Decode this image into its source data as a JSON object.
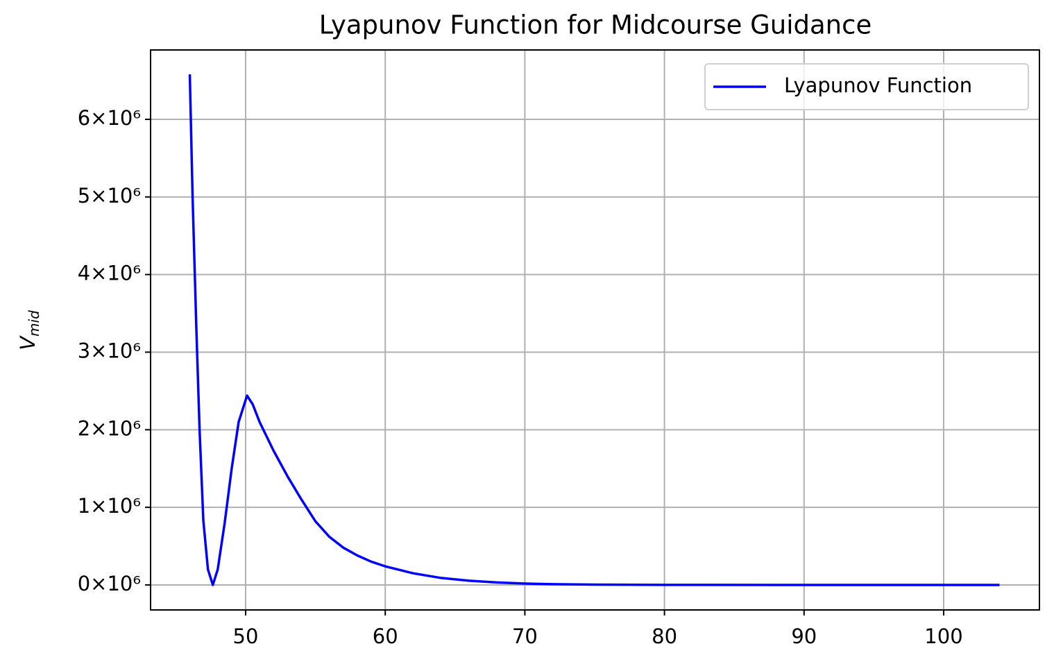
{
  "chart_data": {
    "type": "line",
    "title": "Lyapunov Function for Midcourse Guidance",
    "ylabel": "V",
    "ylabel_subscript": "mid",
    "x": [
      46,
      46.2,
      46.47,
      46.7,
      46.97,
      47.3,
      47.65,
      48,
      48.5,
      49,
      49.5,
      50.1,
      50.5,
      51,
      52,
      53,
      54,
      55,
      56,
      57,
      58,
      59,
      60,
      62,
      64,
      66,
      68,
      70,
      72,
      75,
      80,
      90,
      104
    ],
    "series": [
      {
        "name": "Lyapunov Function",
        "color": "#0000ff",
        "values": [
          6580000,
          5000000,
          3300000,
          2000000,
          830000,
          200000,
          0,
          200000,
          800000,
          1500000,
          2100000,
          2440000,
          2330000,
          2100000,
          1730000,
          1400000,
          1100000,
          820000,
          620000,
          480000,
          380000,
          300000,
          240000,
          150000,
          90000,
          55000,
          32000,
          18000,
          10000,
          4000,
          1000,
          0,
          0
        ]
      }
    ],
    "xlim": [
      43.19,
      106.86
    ],
    "xticks": [
      50,
      60,
      70,
      80,
      90,
      100
    ],
    "ylim": [
      -322000,
      6894000
    ],
    "yticks": [
      {
        "value": 0,
        "label": "0×10⁶"
      },
      {
        "value": 1000000,
        "label": "1×10⁶"
      },
      {
        "value": 2000000,
        "label": "2×10⁶"
      },
      {
        "value": 3000000,
        "label": "3×10⁶"
      },
      {
        "value": 4000000,
        "label": "4×10⁶"
      },
      {
        "value": 5000000,
        "label": "5×10⁶"
      },
      {
        "value": 6000000,
        "label": "6×10⁶"
      }
    ],
    "grid": true,
    "legend": "upper right"
  }
}
